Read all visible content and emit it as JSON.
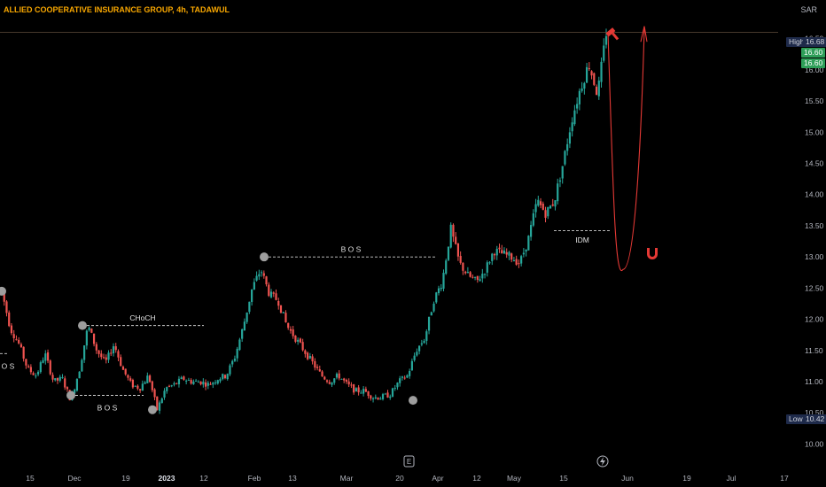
{
  "header": {
    "title": "ALLIED COOPERATIVE INSURANCE GROUP, 4h, TADAWUL",
    "currency": "SAR"
  },
  "price_tags": {
    "high_label": "High",
    "high_value": "16.68",
    "last_a": "16.60",
    "last_b": "16.60",
    "low_label": "Low",
    "low_value": "10.42"
  },
  "event_icons": {
    "earnings": "E",
    "dividend": "lightning-icon"
  },
  "colors": {
    "up": "#26a69a",
    "down": "#ef5350",
    "projection": "#e53935",
    "annotation_dot": "#9e9e9e",
    "title": "#f7a600"
  },
  "chart_data": {
    "type": "candlestick",
    "symbol": "ALLIED COOPERATIVE INSURANCE GROUP",
    "interval": "4h",
    "exchange": "TADAWUL",
    "ylim": [
      9.85,
      16.95
    ],
    "y_ticks": [
      "10.00",
      "10.50",
      "11.00",
      "11.50",
      "12.00",
      "12.50",
      "13.00",
      "13.50",
      "14.00",
      "14.50",
      "15.00",
      "15.50",
      "16.00",
      "16.50"
    ],
    "x_ticks": [
      "15",
      "Dec",
      "19",
      "2023",
      "12",
      "Feb",
      "13",
      "Mar",
      "20",
      "Apr",
      "12",
      "May",
      "15",
      "Jun",
      "19",
      "Jul",
      "17"
    ],
    "price_path": [
      [
        0,
        12.45
      ],
      [
        1,
        11.85
      ],
      [
        2,
        11.6
      ],
      [
        3,
        11.2
      ],
      [
        4,
        11.1
      ],
      [
        5,
        11.45
      ],
      [
        6,
        11.0
      ],
      [
        7,
        11.05
      ],
      [
        8,
        10.7
      ],
      [
        9,
        11.2
      ],
      [
        10,
        11.9
      ],
      [
        11,
        11.5
      ],
      [
        12,
        11.3
      ],
      [
        13,
        11.6
      ],
      [
        14,
        11.2
      ],
      [
        15,
        10.95
      ],
      [
        16,
        10.9
      ],
      [
        17,
        11.1
      ],
      [
        18,
        10.55
      ],
      [
        19,
        10.9
      ],
      [
        20,
        10.95
      ],
      [
        21,
        11.05
      ],
      [
        22,
        11.0
      ],
      [
        23,
        11.0
      ],
      [
        24,
        10.95
      ],
      [
        25,
        11.05
      ],
      [
        26,
        11.1
      ],
      [
        27,
        11.4
      ],
      [
        28,
        11.9
      ],
      [
        29,
        12.5
      ],
      [
        30,
        12.8
      ],
      [
        31,
        12.4
      ],
      [
        32,
        12.3
      ],
      [
        33,
        11.9
      ],
      [
        34,
        11.7
      ],
      [
        35,
        11.5
      ],
      [
        36,
        11.3
      ],
      [
        37,
        11.1
      ],
      [
        38,
        11.0
      ],
      [
        39,
        11.1
      ],
      [
        40,
        10.95
      ],
      [
        41,
        10.85
      ],
      [
        42,
        10.85
      ],
      [
        43,
        10.75
      ],
      [
        44,
        10.75
      ],
      [
        45,
        10.8
      ],
      [
        46,
        11.0
      ],
      [
        47,
        11.1
      ],
      [
        48,
        11.5
      ],
      [
        49,
        11.7
      ],
      [
        50,
        12.3
      ],
      [
        51,
        12.6
      ],
      [
        52,
        13.45
      ],
      [
        53,
        12.9
      ],
      [
        54,
        12.7
      ],
      [
        55,
        12.6
      ],
      [
        56,
        12.8
      ],
      [
        57,
        13.1
      ],
      [
        58,
        13.05
      ],
      [
        59,
        13.0
      ],
      [
        60,
        12.9
      ],
      [
        61,
        13.3
      ],
      [
        62,
        13.9
      ],
      [
        63,
        13.7
      ],
      [
        64,
        13.9
      ],
      [
        65,
        14.5
      ],
      [
        66,
        15.2
      ],
      [
        67,
        15.7
      ],
      [
        68,
        16.1
      ],
      [
        69,
        15.6
      ],
      [
        70,
        16.6
      ]
    ],
    "projection": {
      "type": "curve",
      "points": [
        [
          16.6,
          "start"
        ],
        [
          12.8,
          "trough"
        ],
        [
          16.65,
          "target"
        ]
      ]
    },
    "annotations": [
      {
        "text": "B O S",
        "level": 11.45
      },
      {
        "text": "CHoCH",
        "level": 11.9
      },
      {
        "text": "B O S",
        "level": 10.78
      },
      {
        "text": "B O S",
        "level": 13.0
      },
      {
        "text": "IDM",
        "level": 13.42
      }
    ],
    "legend": "none",
    "grid": false
  }
}
